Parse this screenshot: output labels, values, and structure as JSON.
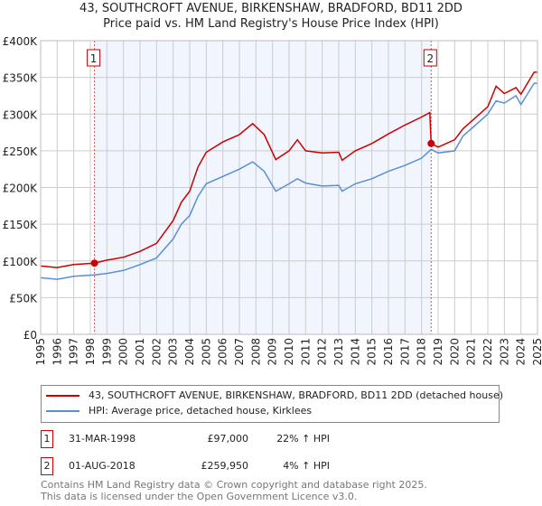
{
  "chart_data": {
    "type": "line",
    "title": "43, SOUTHCROFT AVENUE, BIRKENSHAW, BRADFORD, BD11 2DD",
    "subtitle": "Price paid vs. HM Land Registry's House Price Index (HPI)",
    "xlim": [
      1995,
      2025
    ],
    "ylim": [
      0,
      400000
    ],
    "x_ticks": [
      "1995",
      "1996",
      "1997",
      "1998",
      "1999",
      "2000",
      "2001",
      "2002",
      "2003",
      "2004",
      "2005",
      "2006",
      "2007",
      "2008",
      "2009",
      "2010",
      "2011",
      "2012",
      "2013",
      "2014",
      "2015",
      "2016",
      "2017",
      "2018",
      "2019",
      "2020",
      "2021",
      "2022",
      "2023",
      "2024",
      "2025"
    ],
    "y_ticks": [
      {
        "v": 0,
        "label": "£0"
      },
      {
        "v": 50000,
        "label": "£50K"
      },
      {
        "v": 100000,
        "label": "£100K"
      },
      {
        "v": 150000,
        "label": "£150K"
      },
      {
        "v": 200000,
        "label": "£200K"
      },
      {
        "v": 250000,
        "label": "£250K"
      },
      {
        "v": 300000,
        "label": "£300K"
      },
      {
        "v": 350000,
        "label": "£350K"
      },
      {
        "v": 400000,
        "label": "£400K"
      }
    ],
    "grid": true,
    "shaded_range": [
      1998.25,
      2018.58
    ],
    "series": [
      {
        "name": "43, SOUTHCROFT AVENUE, BIRKENSHAW, BRADFORD, BD11 2DD (detached house)",
        "color": "#cc0000",
        "x": [
          1995,
          1996,
          1997,
          1998.25,
          1999,
          2000,
          2001,
          2002,
          2003,
          2003.5,
          2004,
          2004.5,
          2005,
          2006,
          2007,
          2007.8,
          2008.5,
          2009.2,
          2010,
          2010.5,
          2011,
          2012,
          2013,
          2013.2,
          2014,
          2015,
          2016,
          2017,
          2018,
          2018.5,
          2018.58,
          2019,
          2020,
          2020.5,
          2021,
          2022,
          2022.5,
          2023,
          2023.7,
          2024,
          2024.8,
          2025
        ],
        "y": [
          93000,
          91000,
          95000,
          97000,
          101000,
          105000,
          113000,
          124000,
          155000,
          180000,
          195000,
          228000,
          248000,
          262000,
          272000,
          287000,
          272000,
          238000,
          250000,
          265000,
          250000,
          247000,
          248000,
          237000,
          250000,
          260000,
          273000,
          285000,
          296000,
          302000,
          259950,
          255000,
          265000,
          280000,
          290000,
          310000,
          338000,
          328000,
          336000,
          327000,
          357000,
          357000
        ]
      },
      {
        "name": "HPI: Average price, detached house, Kirklees",
        "color": "#5b8fd4",
        "x": [
          1995,
          1996,
          1997,
          1998.25,
          1999,
          2000,
          2001,
          2002,
          2003,
          2003.5,
          2004,
          2004.5,
          2005,
          2006,
          2007,
          2007.8,
          2008.5,
          2009.2,
          2010,
          2010.5,
          2011,
          2012,
          2013,
          2013.2,
          2014,
          2015,
          2016,
          2017,
          2018,
          2018.58,
          2019,
          2020,
          2020.5,
          2021,
          2022,
          2022.5,
          2023,
          2023.7,
          2024,
          2024.8,
          2025
        ],
        "y": [
          77000,
          75000,
          79000,
          81000,
          83000,
          87000,
          95000,
          104000,
          130000,
          150000,
          162000,
          188000,
          205000,
          215000,
          225000,
          235000,
          222000,
          195000,
          205000,
          212000,
          206000,
          202000,
          203000,
          195000,
          205000,
          212000,
          222000,
          230000,
          240000,
          252000,
          247000,
          250000,
          270000,
          280000,
          300000,
          318000,
          315000,
          325000,
          313000,
          342000,
          342000
        ]
      }
    ],
    "sales": [
      {
        "id": "1",
        "x": 1998.25,
        "y": 97000
      },
      {
        "id": "2",
        "x": 2018.58,
        "y": 259950
      }
    ]
  },
  "legend": {
    "property": "43, SOUTHCROFT AVENUE, BIRKENSHAW, BRADFORD, BD11 2DD (detached house)",
    "hpi": "HPI: Average price, detached house, Kirklees"
  },
  "sales_table": [
    {
      "id": "1",
      "date": "31-MAR-1998",
      "price": "£97,000",
      "hpi": "22% ↑ HPI"
    },
    {
      "id": "2",
      "date": "01-AUG-2018",
      "price": "£259,950",
      "hpi": "4% ↑ HPI"
    }
  ],
  "footer": {
    "line1": "Contains HM Land Registry data © Crown copyright and database right 2025.",
    "line2": "This data is licensed under the Open Government Licence v3.0."
  }
}
